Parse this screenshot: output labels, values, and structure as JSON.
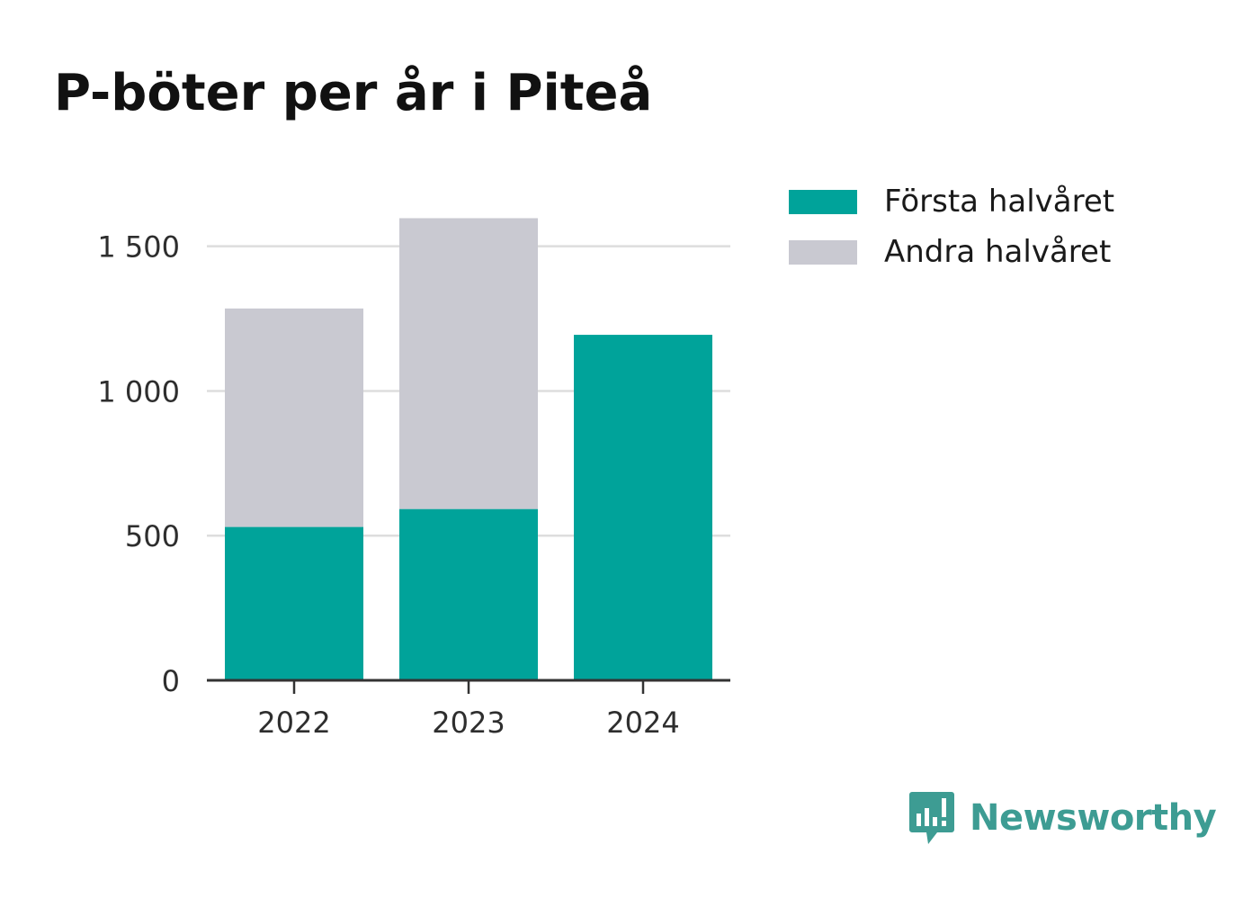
{
  "chart_data": {
    "type": "bar",
    "stacked": true,
    "title": "P-böter per år i Piteå",
    "categories": [
      "2022",
      "2023",
      "2024"
    ],
    "series": [
      {
        "name": "Första halvåret",
        "color": "#00a39a",
        "values": [
          530,
          592,
          1194
        ]
      },
      {
        "name": "Andra halvåret",
        "color": "#c9c9d1",
        "values": [
          755,
          1005,
          0
        ]
      }
    ],
    "ylim": [
      0,
      1600
    ],
    "yticks": [
      0,
      500,
      1000,
      1500
    ],
    "ytick_labels": [
      "0",
      "500",
      "1 000",
      "1 500"
    ],
    "xlabel": "",
    "ylabel": "",
    "grid": true,
    "legend_position": "right"
  },
  "legend": {
    "items": [
      {
        "label": "Första halvåret",
        "color": "#00a39a"
      },
      {
        "label": "Andra halvåret",
        "color": "#c9c9d1"
      }
    ]
  },
  "brand": {
    "name": "Newsworthy",
    "icon": "newsworthy-logo-icon",
    "color": "#3d9c93"
  }
}
